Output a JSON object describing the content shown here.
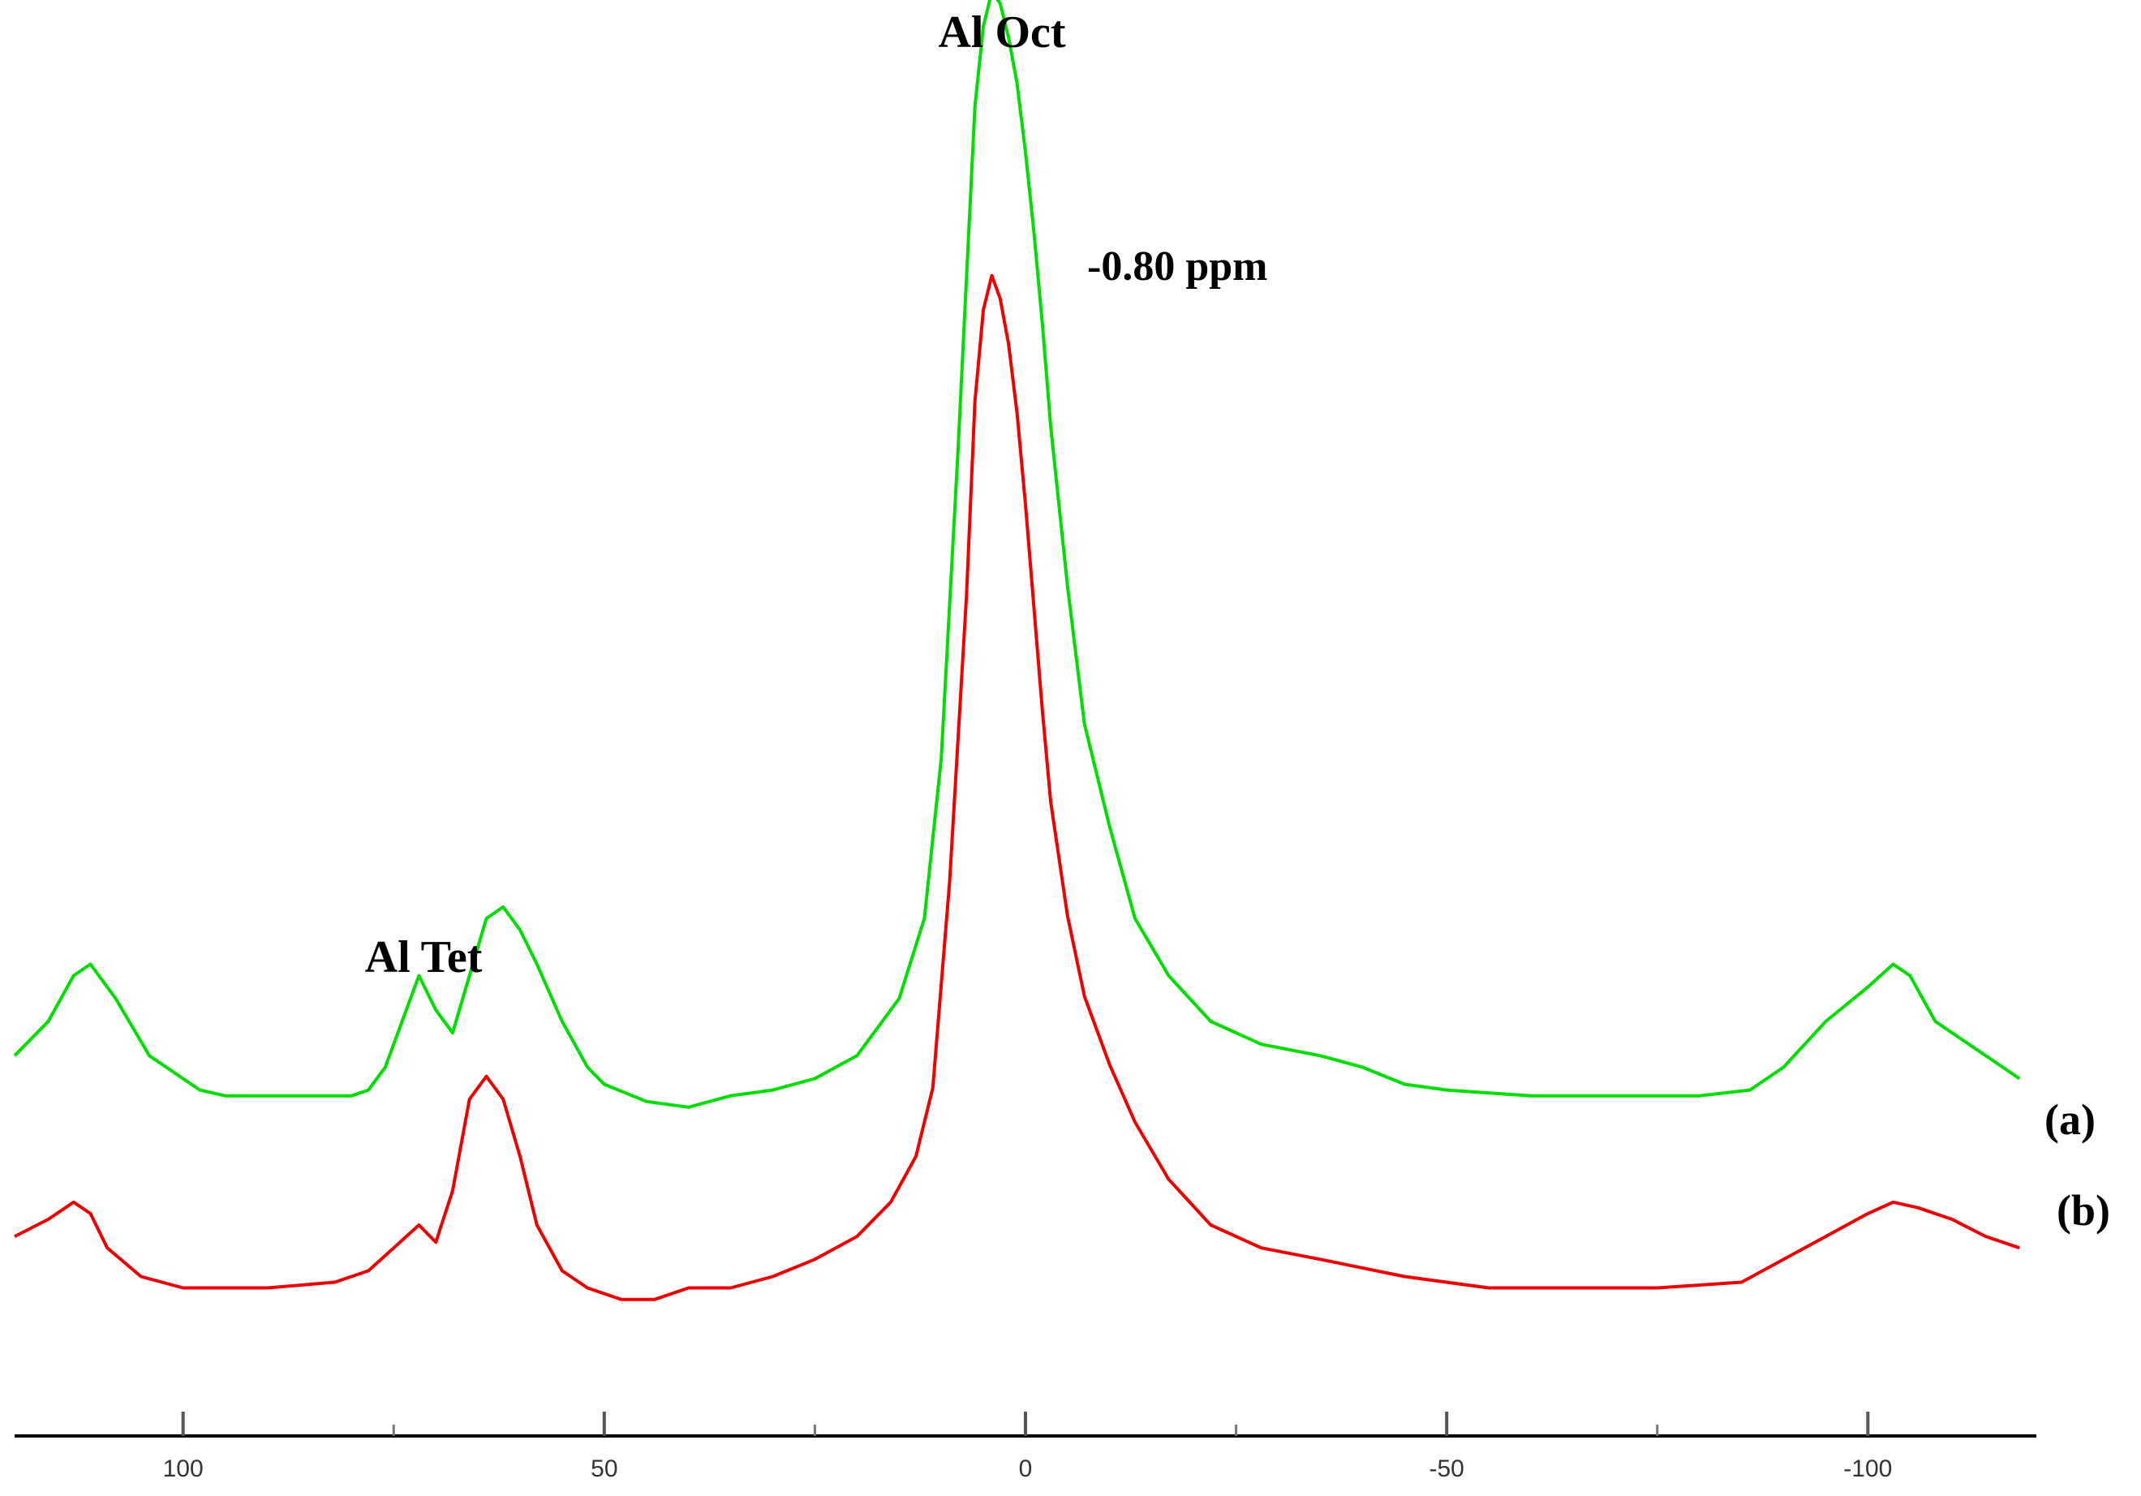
{
  "chart_data": {
    "type": "line",
    "xlabel": "",
    "ylabel": "",
    "x_reversed": true,
    "xlim": [
      120,
      -120
    ],
    "xticks": [
      100,
      50,
      0,
      -50,
      -100
    ],
    "xtick_labels": [
      "100",
      "50",
      "0",
      "-50",
      "-100"
    ],
    "minor_xticks": [
      75,
      25,
      -25,
      -75
    ],
    "grid": false,
    "legend": "none",
    "annotations": {
      "oct": "Al Oct",
      "tet": "Al Tet",
      "peak": "-0.80 ppm"
    },
    "series": [
      {
        "name": "(a)",
        "color": "#00dd00",
        "points": [
          [
            120,
            0.07
          ],
          [
            116,
            0.1
          ],
          [
            113,
            0.14
          ],
          [
            111,
            0.15
          ],
          [
            108,
            0.12
          ],
          [
            104,
            0.07
          ],
          [
            98,
            0.04
          ],
          [
            95,
            0.035
          ],
          [
            90,
            0.035
          ],
          [
            80,
            0.035
          ],
          [
            78,
            0.04
          ],
          [
            76,
            0.06
          ],
          [
            74,
            0.1
          ],
          [
            72,
            0.14
          ],
          [
            70,
            0.11
          ],
          [
            68,
            0.09
          ],
          [
            66,
            0.14
          ],
          [
            64,
            0.19
          ],
          [
            62,
            0.2
          ],
          [
            60,
            0.18
          ],
          [
            58,
            0.15
          ],
          [
            55,
            0.1
          ],
          [
            52,
            0.06
          ],
          [
            50,
            0.045
          ],
          [
            45,
            0.03
          ],
          [
            40,
            0.025
          ],
          [
            35,
            0.035
          ],
          [
            30,
            0.04
          ],
          [
            25,
            0.05
          ],
          [
            20,
            0.07
          ],
          [
            15,
            0.12
          ],
          [
            12,
            0.19
          ],
          [
            10,
            0.33
          ],
          [
            8,
            0.6
          ],
          [
            6,
            0.9
          ],
          [
            5,
            0.97
          ],
          [
            4,
            1.0
          ],
          [
            3,
            0.99
          ],
          [
            2,
            0.96
          ],
          [
            1,
            0.92
          ],
          [
            0,
            0.86
          ],
          [
            -1,
            0.79
          ],
          [
            -2,
            0.71
          ],
          [
            -3,
            0.62
          ],
          [
            -5,
            0.48
          ],
          [
            -7,
            0.36
          ],
          [
            -10,
            0.27
          ],
          [
            -13,
            0.19
          ],
          [
            -17,
            0.14
          ],
          [
            -22,
            0.1
          ],
          [
            -28,
            0.08
          ],
          [
            -35,
            0.07
          ],
          [
            -40,
            0.06
          ],
          [
            -45,
            0.045
          ],
          [
            -50,
            0.04
          ],
          [
            -60,
            0.035
          ],
          [
            -70,
            0.035
          ],
          [
            -80,
            0.035
          ],
          [
            -86,
            0.04
          ],
          [
            -90,
            0.06
          ],
          [
            -95,
            0.1
          ],
          [
            -100,
            0.13
          ],
          [
            -103,
            0.15
          ],
          [
            -105,
            0.14
          ],
          [
            -108,
            0.1
          ],
          [
            -112,
            0.08
          ],
          [
            -116,
            0.06
          ],
          [
            -118,
            0.05
          ]
        ]
      },
      {
        "name": "(b)",
        "color": "#ee0000",
        "points": [
          [
            120,
            -0.01
          ],
          [
            116,
            0.005
          ],
          [
            113,
            0.02
          ],
          [
            111,
            0.01
          ],
          [
            109,
            -0.02
          ],
          [
            105,
            -0.045
          ],
          [
            100,
            -0.055
          ],
          [
            90,
            -0.055
          ],
          [
            82,
            -0.05
          ],
          [
            78,
            -0.04
          ],
          [
            75,
            -0.02
          ],
          [
            72,
            0.0
          ],
          [
            70,
            -0.015
          ],
          [
            68,
            0.03
          ],
          [
            66,
            0.11
          ],
          [
            64,
            0.13
          ],
          [
            62,
            0.11
          ],
          [
            60,
            0.06
          ],
          [
            58,
            0.0
          ],
          [
            55,
            -0.04
          ],
          [
            52,
            -0.055
          ],
          [
            48,
            -0.065
          ],
          [
            44,
            -0.065
          ],
          [
            40,
            -0.055
          ],
          [
            35,
            -0.055
          ],
          [
            30,
            -0.045
          ],
          [
            25,
            -0.03
          ],
          [
            20,
            -0.01
          ],
          [
            16,
            0.02
          ],
          [
            13,
            0.06
          ],
          [
            11,
            0.12
          ],
          [
            9,
            0.3
          ],
          [
            7,
            0.55
          ],
          [
            6,
            0.72
          ],
          [
            5,
            0.8
          ],
          [
            4,
            0.83
          ],
          [
            3,
            0.81
          ],
          [
            2,
            0.77
          ],
          [
            1,
            0.71
          ],
          [
            0,
            0.63
          ],
          [
            -1,
            0.54
          ],
          [
            -2,
            0.45
          ],
          [
            -3,
            0.37
          ],
          [
            -5,
            0.27
          ],
          [
            -7,
            0.2
          ],
          [
            -10,
            0.14
          ],
          [
            -13,
            0.09
          ],
          [
            -17,
            0.04
          ],
          [
            -22,
            0.0
          ],
          [
            -28,
            -0.02
          ],
          [
            -35,
            -0.03
          ],
          [
            -45,
            -0.045
          ],
          [
            -55,
            -0.055
          ],
          [
            -65,
            -0.055
          ],
          [
            -75,
            -0.055
          ],
          [
            -85,
            -0.05
          ],
          [
            -90,
            -0.03
          ],
          [
            -95,
            -0.01
          ],
          [
            -100,
            0.01
          ],
          [
            -103,
            0.02
          ],
          [
            -106,
            0.015
          ],
          [
            -110,
            0.005
          ],
          [
            -114,
            -0.01
          ],
          [
            -118,
            -0.02
          ]
        ]
      }
    ]
  }
}
